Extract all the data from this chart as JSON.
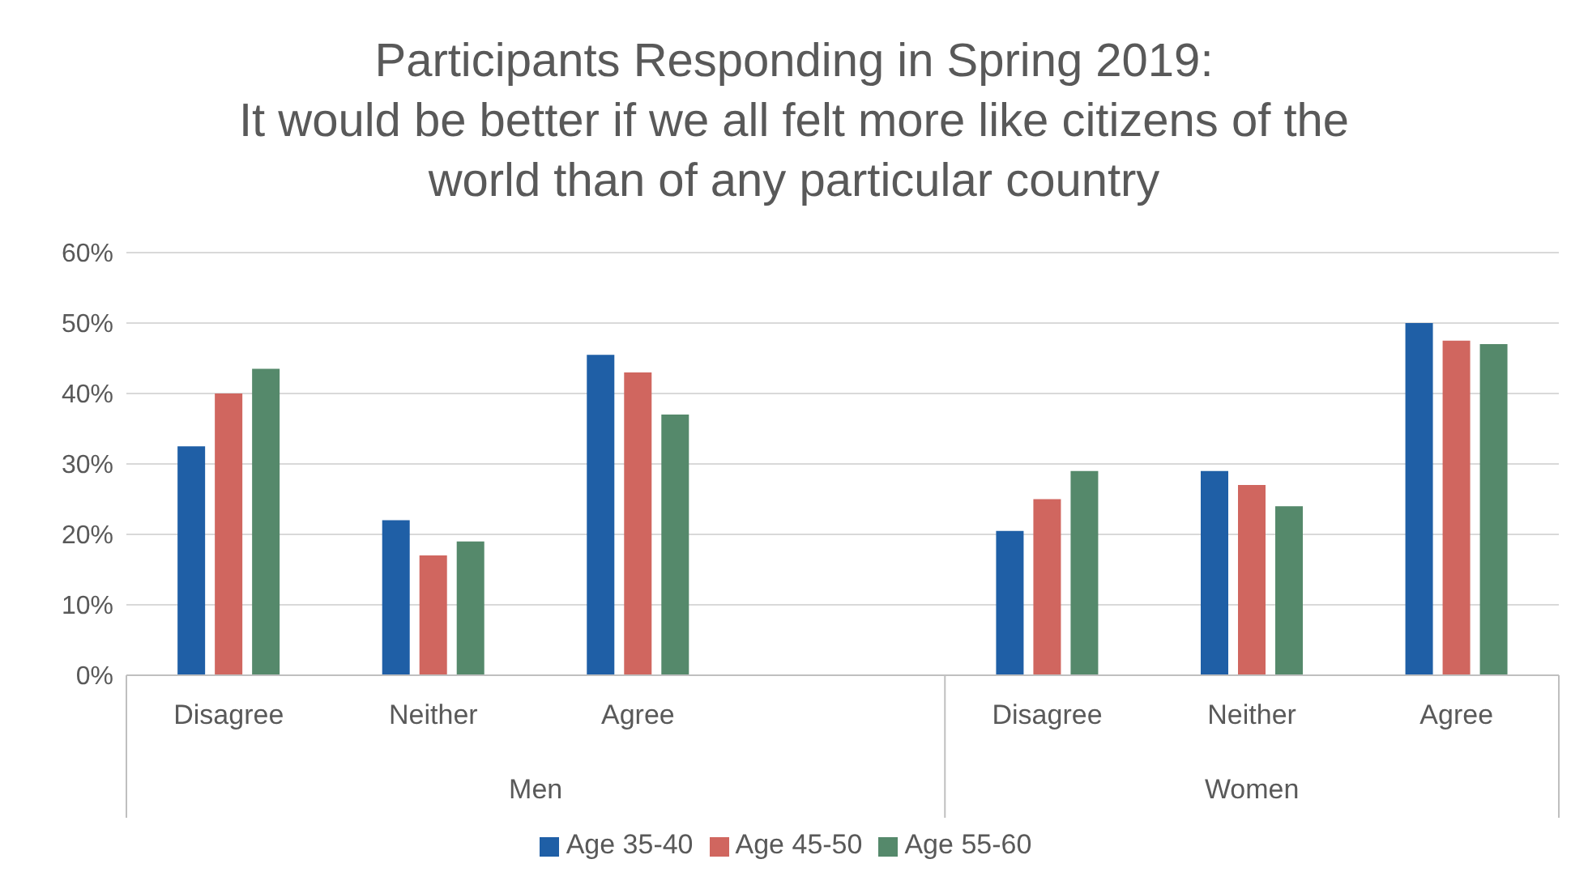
{
  "chart_data": {
    "type": "bar",
    "title": "Participants Responding  in Spring 2019:\nIt would be better if we all felt more like citizens of the\nworld than of any particular country",
    "categories": [
      "Disagree",
      "Neither",
      "Agree",
      null,
      "Disagree",
      "Neither",
      "Agree"
    ],
    "series": [
      {
        "name": "Age 35-40",
        "color": "#1f5fa6",
        "values": [
          32.5,
          22,
          45.5,
          null,
          20.5,
          29,
          50
        ]
      },
      {
        "name": "Age 45-50",
        "color": "#d0665f",
        "values": [
          40,
          17,
          43,
          null,
          25,
          27,
          47.5
        ]
      },
      {
        "name": "Age 55-60",
        "color": "#55896b",
        "values": [
          43.5,
          19,
          37,
          null,
          29,
          24,
          47
        ]
      }
    ],
    "ylim": [
      0,
      60
    ],
    "yticks": [
      {
        "value": 0,
        "label": "0%"
      },
      {
        "value": 10,
        "label": "10%"
      },
      {
        "value": 20,
        "label": "20%"
      },
      {
        "value": 30,
        "label": "30%"
      },
      {
        "value": 40,
        "label": "40%"
      },
      {
        "value": 50,
        "label": "50%"
      },
      {
        "value": 60,
        "label": "60%"
      }
    ],
    "annotations": [
      "Men",
      "Women"
    ],
    "grid": "y",
    "legend": "bottom"
  }
}
